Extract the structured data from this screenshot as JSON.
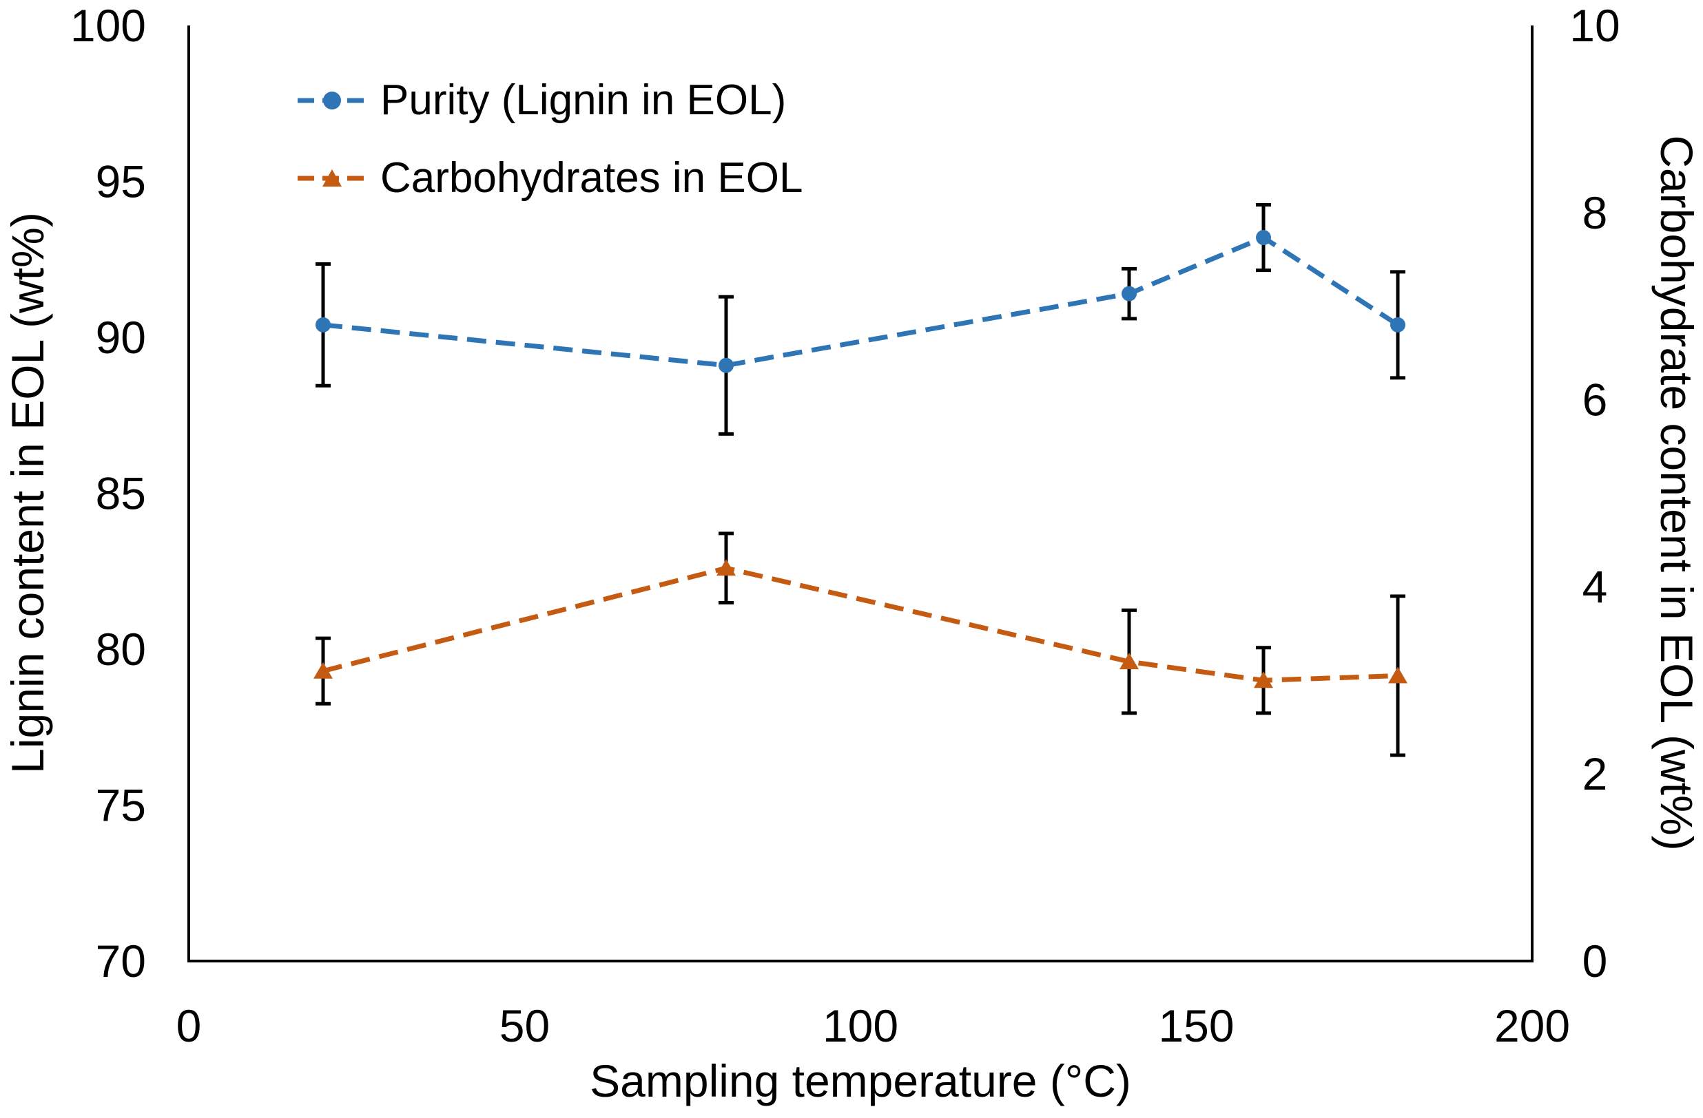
{
  "chart_data": {
    "type": "line",
    "title": "",
    "xlabel": "Sampling temperature (°C)",
    "x": [
      20,
      80,
      140,
      160,
      180
    ],
    "x_ticks": [
      0,
      50,
      100,
      150,
      200
    ],
    "xlim": [
      0,
      200
    ],
    "grid": false,
    "legend_position": "top-left-inside",
    "left_axis": {
      "label": "Lignin content in EOL (wt%)",
      "range": [
        70,
        100
      ],
      "ticks": [
        70,
        75,
        80,
        85,
        90,
        95,
        100
      ]
    },
    "right_axis": {
      "label": "Carbohydrate content in EOL (wt%)",
      "range": [
        0,
        10
      ],
      "ticks": [
        0,
        2,
        4,
        6,
        8,
        10
      ]
    },
    "series": [
      {
        "name": "Purity (Lignin in EOL)",
        "axis": "left",
        "color": "#2E75B6",
        "marker": "circle",
        "line_style": "dashed",
        "values": [
          90.4,
          89.1,
          91.4,
          93.2,
          90.4
        ],
        "error": [
          1.95,
          2.2,
          0.8,
          1.05,
          1.7
        ]
      },
      {
        "name": "Carbohydrates in EOL",
        "axis": "right",
        "color": "#C55A11",
        "marker": "triangle",
        "line_style": "dashed",
        "values": [
          3.1,
          4.2,
          3.2,
          3.0,
          3.05
        ],
        "error": [
          0.35,
          0.37,
          0.55,
          0.35,
          0.85
        ]
      }
    ],
    "error_bar_color": "#000000",
    "axis_color": "#000000"
  }
}
